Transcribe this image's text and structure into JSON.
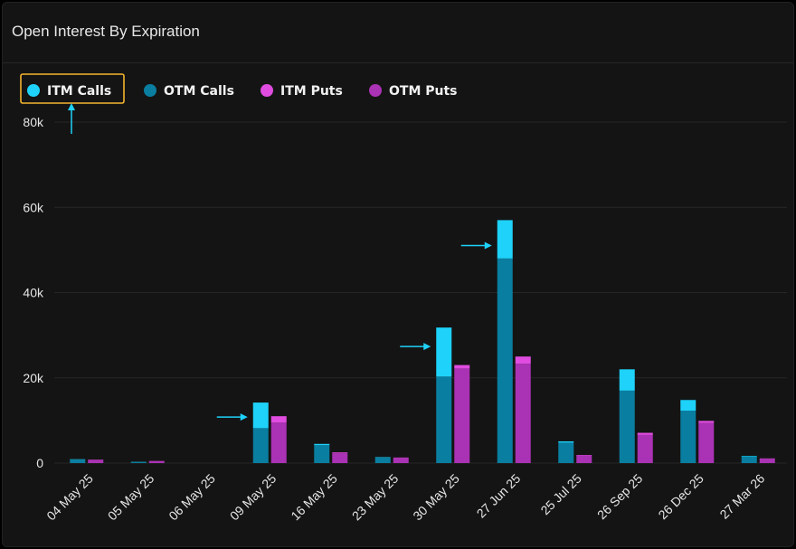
{
  "header": {
    "title": "Open Interest By Expiration"
  },
  "chart_data": {
    "type": "bar",
    "stacked": true,
    "title": "Open Interest By Expiration",
    "categories": [
      "04 May 25",
      "05 May 25",
      "06 May 25",
      "09 May 25",
      "16 May 25",
      "23 May 25",
      "30 May 25",
      "27 Jun 25",
      "25 Jul 25",
      "26 Sep 25",
      "26 Dec 25",
      "27 Mar 26"
    ],
    "ylim": [
      0,
      80000
    ],
    "yticks": [
      0,
      20000,
      40000,
      60000,
      80000
    ],
    "ytick_labels": [
      "0",
      "20k",
      "40k",
      "60k",
      "80k"
    ],
    "grid": true,
    "legend_position": "top-left",
    "series": [
      {
        "name": "ITM Calls",
        "color": "#1ed2fa",
        "stack": "calls",
        "values": [
          100,
          50,
          0,
          6000,
          300,
          100,
          11500,
          9000,
          300,
          5000,
          2500,
          100
        ]
      },
      {
        "name": "OTM Calls",
        "color": "#0a7ea0",
        "stack": "calls",
        "values": [
          800,
          250,
          0,
          8200,
          4200,
          1300,
          20300,
          48000,
          4800,
          17000,
          12300,
          1600
        ]
      },
      {
        "name": "ITM Puts",
        "color": "#e04ce0",
        "stack": "puts",
        "values": [
          100,
          50,
          0,
          1500,
          200,
          100,
          800,
          1700,
          100,
          500,
          500,
          100
        ]
      },
      {
        "name": "OTM Puts",
        "color": "#aa32b4",
        "stack": "puts",
        "values": [
          700,
          450,
          0,
          9500,
          2300,
          1200,
          22200,
          23300,
          1800,
          6600,
          9400,
          1000
        ]
      }
    ],
    "highlighted_legend": "ITM Calls",
    "highlight_color": "#f5b52e",
    "annotation_color": "#1ed2fa",
    "arrow_annotations": [
      "09 May 25",
      "30 May 25",
      "27 Jun 25"
    ]
  }
}
